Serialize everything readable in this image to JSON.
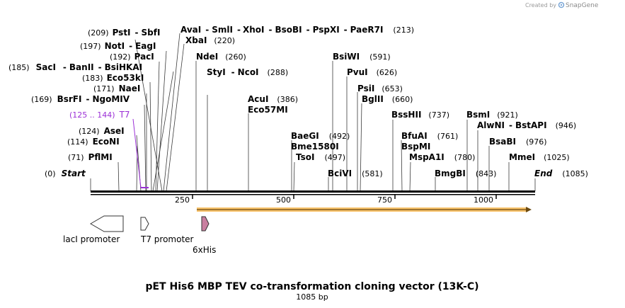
{
  "credit": {
    "created_by": "Created by",
    "brand": "SnapGene"
  },
  "title": "pET His6 MBP TEV co-transformation cloning vector (13K-C)",
  "subtitle": "1085 bp",
  "sequence_length": 1085,
  "axis": {
    "start_label": "Start",
    "start_pos": "(0)",
    "end_label": "End",
    "end_pos": "(1085)",
    "ticks": [
      {
        "label": "250"
      },
      {
        "label": "500"
      },
      {
        "label": "750"
      },
      {
        "label": "1000"
      }
    ]
  },
  "sites": [
    {
      "pos": "(209)",
      "parts": [
        "PstI",
        "SbfI"
      ]
    },
    {
      "pos": "(213)",
      "parts": [
        "AvaI",
        "SmlI",
        "XhoI",
        "BsoBI",
        "PspXI",
        "PaeR7I"
      ]
    },
    {
      "pos": "(197)",
      "parts": [
        "NotI",
        "EagI"
      ]
    },
    {
      "pos": "(220)",
      "parts": [
        "XbaI"
      ]
    },
    {
      "pos": "(192)",
      "parts": [
        "PacI"
      ]
    },
    {
      "pos": "(260)",
      "parts": [
        "NdeI"
      ]
    },
    {
      "pos": "(185)",
      "parts": [
        "SacI",
        "BanII",
        "BsiHKAI"
      ]
    },
    {
      "pos": "(288)",
      "parts": [
        "StyI",
        "NcoI"
      ]
    },
    {
      "pos": "(183)",
      "parts": [
        "Eco53kI"
      ]
    },
    {
      "pos": "(171)",
      "parts": [
        "NaeI"
      ]
    },
    {
      "pos": "(169)",
      "parts": [
        "BsrFI",
        "NgoMIV"
      ]
    },
    {
      "pos": "(386)",
      "parts": [
        "AcuI"
      ]
    },
    {
      "pos": "",
      "parts": [
        "Eco57MI"
      ]
    },
    {
      "pos": "(591)",
      "parts": [
        "BsiWI"
      ]
    },
    {
      "pos": "(626)",
      "parts": [
        "PvuI"
      ]
    },
    {
      "pos": "(653)",
      "parts": [
        "PsiI"
      ]
    },
    {
      "pos": "(660)",
      "parts": [
        "BglII"
      ]
    },
    {
      "pos": "(737)",
      "parts": [
        "BssHII"
      ]
    },
    {
      "pos": "(921)",
      "parts": [
        "BsmI"
      ]
    },
    {
      "pos": "(946)",
      "parts": [
        "AlwNI",
        "BstAPI"
      ]
    },
    {
      "pos": "(124)",
      "parts": [
        "AseI"
      ]
    },
    {
      "pos": "(114)",
      "parts": [
        "EcoNI"
      ]
    },
    {
      "pos": "(71)",
      "parts": [
        "PflMI"
      ]
    },
    {
      "pos": "(492)",
      "parts": [
        "BaeGI"
      ]
    },
    {
      "pos": "",
      "parts": [
        "Bme1580I"
      ]
    },
    {
      "pos": "(497)",
      "parts": [
        "TsoI"
      ]
    },
    {
      "pos": "(581)",
      "parts": [
        "BciVI"
      ]
    },
    {
      "pos": "(761)",
      "parts": [
        "BfuAI"
      ]
    },
    {
      "pos": "",
      "parts": [
        "BspMI"
      ]
    },
    {
      "pos": "(780)",
      "parts": [
        "MspA1I"
      ]
    },
    {
      "pos": "(843)",
      "parts": [
        "BmgBI"
      ]
    },
    {
      "pos": "(976)",
      "parts": [
        "BsaBI"
      ]
    },
    {
      "pos": "(1025)",
      "parts": [
        "MmeI"
      ]
    }
  ],
  "t7_site": {
    "pos": "(125 .. 144)",
    "label": "T7"
  },
  "features": [
    {
      "label": "lacI promoter"
    },
    {
      "label": "T7 promoter"
    },
    {
      "label": "6xHis"
    }
  ],
  "colors": {
    "backbone": "#000000",
    "orf": "#f7c26a",
    "t7": "#9b2fd6",
    "his": "#c97fa0"
  }
}
